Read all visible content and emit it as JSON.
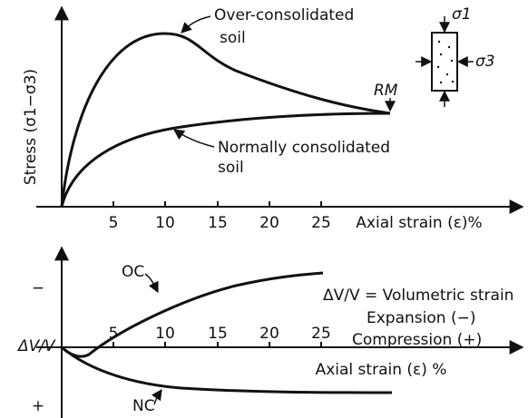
{
  "stress_plot": {
    "y_label": "Stress (σ1−σ3)",
    "x_label": "Axial strain (ε)%",
    "x_ticks": [
      "5",
      "10",
      "15",
      "20",
      "25"
    ],
    "curves": [
      {
        "label_lines": [
          "Over-consolidated",
          "soil"
        ]
      },
      {
        "label_lines": [
          "Normally  consolidated",
          "soil"
        ]
      }
    ],
    "rm_label": "RM",
    "inset": {
      "sigma1": "σ1",
      "sigma3": "σ3"
    }
  },
  "volume_plot": {
    "y_label": "ΔV/V",
    "expansion_sign": "−",
    "compression_sign": "+",
    "x_ticks": [
      "5",
      "10",
      "15",
      "20",
      "25"
    ],
    "x_label": "Axial strain (ε) %",
    "curves": [
      {
        "label": "OC"
      },
      {
        "label": "NC"
      }
    ],
    "legend_lines": [
      "ΔV/V = Volumetric strain",
      "Expansion (−)",
      "Compression (+)"
    ]
  }
}
